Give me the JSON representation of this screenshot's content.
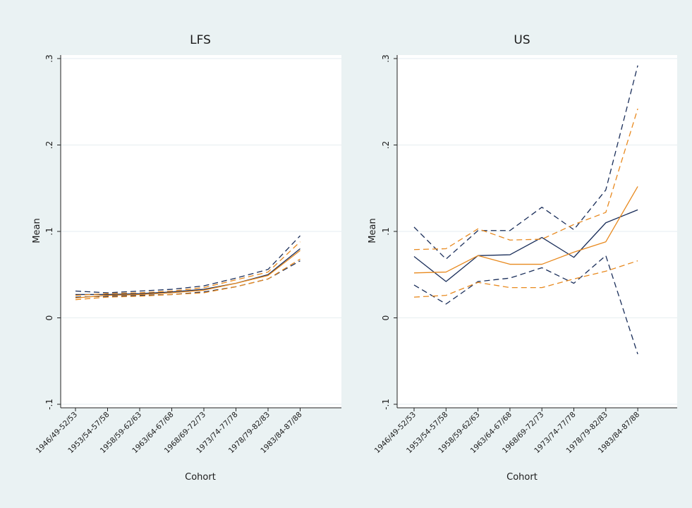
{
  "colors": {
    "background": "#eaf2f3",
    "plot_bg": "#ffffff",
    "grid": "#e6eef0",
    "navy": "#1a2e5a",
    "orange": "#e8891e"
  },
  "chart_data": [
    {
      "type": "line",
      "title": "LFS",
      "xlabel": "Cohort",
      "ylabel": "Mean",
      "categories": [
        "1946/49-52/53",
        "1953/54-57/58",
        "1958/59-62/63",
        "1963/64-67/68",
        "1968/69-72/73",
        "1973/74-77/78",
        "1978/79-82/83",
        "1983/84-87/88"
      ],
      "yticks": [
        ".3",
        ".2",
        ".1",
        "0",
        "-.1"
      ],
      "ytick_values": [
        0.3,
        0.2,
        0.1,
        0,
        -0.1
      ],
      "ylim": [
        -0.1,
        0.3
      ],
      "grid": true,
      "series": [
        {
          "color": "navy",
          "style": "solid",
          "values": [
            0.027,
            0.027,
            0.028,
            0.03,
            0.033,
            0.04,
            0.05,
            0.08
          ]
        },
        {
          "color": "navy",
          "style": "dashed",
          "values": [
            0.031,
            0.029,
            0.031,
            0.033,
            0.037,
            0.046,
            0.056,
            0.095
          ]
        },
        {
          "color": "navy",
          "style": "dashed",
          "values": [
            0.024,
            0.025,
            0.026,
            0.027,
            0.03,
            0.036,
            0.045,
            0.066
          ]
        },
        {
          "color": "orange",
          "style": "solid",
          "values": [
            0.023,
            0.026,
            0.027,
            0.029,
            0.032,
            0.04,
            0.049,
            0.078
          ]
        },
        {
          "color": "orange",
          "style": "dashed",
          "values": [
            0.026,
            0.028,
            0.029,
            0.031,
            0.035,
            0.044,
            0.053,
            0.088
          ]
        },
        {
          "color": "orange",
          "style": "dashed",
          "values": [
            0.021,
            0.024,
            0.025,
            0.027,
            0.029,
            0.036,
            0.045,
            0.068
          ]
        }
      ]
    },
    {
      "type": "line",
      "title": "US",
      "xlabel": "Cohort",
      "ylabel": "Mean",
      "categories": [
        "1946/49-52/53",
        "1953/54-57/58",
        "1958/59-62/63",
        "1963/64-67/68",
        "1968/69-72/73",
        "1973/74-77/78",
        "1978/79-82/83",
        "1983/84-87/88"
      ],
      "yticks": [
        ".3",
        ".2",
        ".1",
        "0",
        "-.1"
      ],
      "ytick_values": [
        0.3,
        0.2,
        0.1,
        0,
        -0.1
      ],
      "ylim": [
        -0.1,
        0.3
      ],
      "grid": true,
      "series": [
        {
          "color": "navy",
          "style": "solid",
          "values": [
            0.071,
            0.042,
            0.072,
            0.073,
            0.093,
            0.07,
            0.11,
            0.125
          ]
        },
        {
          "color": "navy",
          "style": "dashed",
          "values": [
            0.105,
            0.068,
            0.101,
            0.101,
            0.128,
            0.102,
            0.148,
            0.292
          ]
        },
        {
          "color": "navy",
          "style": "dashed",
          "values": [
            0.038,
            0.016,
            0.042,
            0.046,
            0.058,
            0.04,
            0.072,
            -0.042
          ]
        },
        {
          "color": "orange",
          "style": "solid",
          "values": [
            0.052,
            0.053,
            0.072,
            0.062,
            0.062,
            0.076,
            0.088,
            0.152
          ]
        },
        {
          "color": "orange",
          "style": "dashed",
          "values": [
            0.079,
            0.08,
            0.103,
            0.09,
            0.091,
            0.108,
            0.122,
            0.242
          ]
        },
        {
          "color": "orange",
          "style": "dashed",
          "values": [
            0.024,
            0.026,
            0.041,
            0.035,
            0.035,
            0.045,
            0.054,
            0.066
          ]
        }
      ]
    }
  ]
}
